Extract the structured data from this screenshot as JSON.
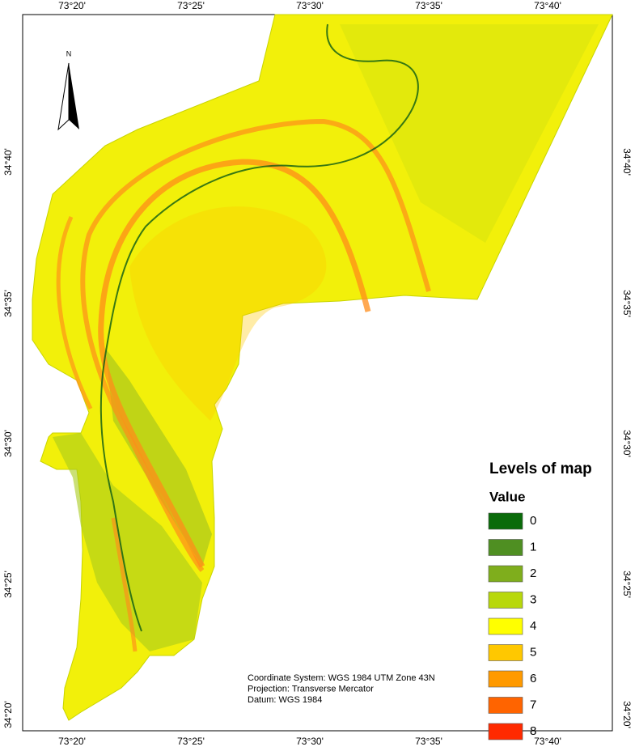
{
  "map": {
    "north_label": "N",
    "x_ticks": [
      "73°20'",
      "73°25'",
      "73°30'",
      "73°35'",
      "73°40'"
    ],
    "y_ticks": [
      "34°40'",
      "34°35'",
      "34°30'",
      "34°25'",
      "34°20'"
    ],
    "legend": {
      "title": "Levels of map",
      "subtitle": "Value",
      "items": [
        {
          "label": "0",
          "color": "#0a6b0a"
        },
        {
          "label": "1",
          "color": "#4f8f22"
        },
        {
          "label": "2",
          "color": "#7fae1c"
        },
        {
          "label": "3",
          "color": "#b8d80c"
        },
        {
          "label": "4",
          "color": "#ffff00"
        },
        {
          "label": "5",
          "color": "#ffc800"
        },
        {
          "label": "6",
          "color": "#ff9a00"
        },
        {
          "label": "7",
          "color": "#ff6400"
        },
        {
          "label": "8",
          "color": "#ff2a00"
        }
      ]
    },
    "notes": [
      "Coordinate System: WGS 1984 UTM Zone 43N",
      "Projection: Transverse Mercator",
      "Datum: WGS 1984"
    ]
  }
}
